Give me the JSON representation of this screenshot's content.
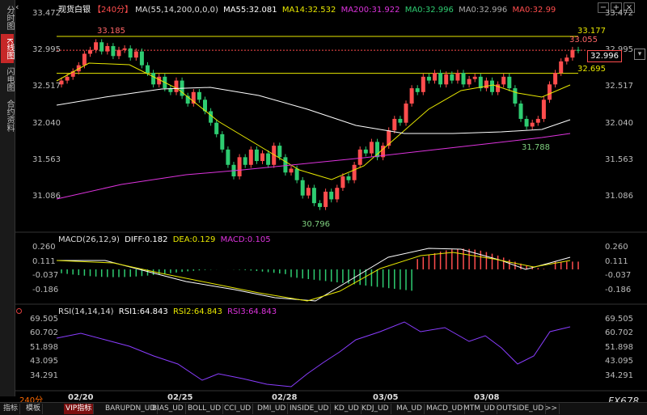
{
  "sidebar": {
    "tabs": [
      {
        "label": "分时图",
        "active": false
      },
      {
        "label": "K线图",
        "active": true
      },
      {
        "label": "闪电图",
        "active": false
      },
      {
        "label": "合约资料",
        "active": false
      }
    ]
  },
  "header": {
    "symbol": "现货白银",
    "period": "【240分】",
    "ma_params": "MA(55,14,200,0,0,0)",
    "ma55": "MA55:32.081",
    "ma14": "MA14:32.532",
    "ma200": "MA200:31.922",
    "ma_a": "MA0:32.996",
    "ma_b": "MA0:32.996",
    "ma_c": "MA0:32.99"
  },
  "price_axis": {
    "ticks": [
      "33.472",
      "32.995",
      "32.517",
      "32.040",
      "31.563",
      "31.086"
    ]
  },
  "annotations": {
    "high": "33.185",
    "low": "30.796",
    "local_low": "31.788",
    "line_upper": "33.177",
    "last_high": "33.055",
    "line_lower": "32.695",
    "current": "32.996"
  },
  "macd": {
    "title": "MACD(26,12,9)",
    "diff": "DIFF:0.182",
    "dea": "DEA:0.129",
    "macd": "MACD:0.105",
    "ticks": [
      "0.260",
      "0.111",
      "-0.037",
      "-0.186"
    ]
  },
  "rsi": {
    "title": "RSI(14,14,14)",
    "rsi1": "RSI1:64.843",
    "rsi2": "RSI2:64.843",
    "rsi3": "RSI3:64.843",
    "ticks": [
      "69.505",
      "60.702",
      "51.898",
      "43.095",
      "34.291"
    ]
  },
  "x_axis": {
    "period_label": "240分",
    "dates": [
      "02/20",
      "02/25",
      "02/28",
      "03/05",
      "03/08"
    ]
  },
  "bottom_tabs": [
    "指标",
    "模板",
    "VIP指标",
    "BARUPDN_UD",
    "BIAS_UD",
    "BOLL_UD",
    "CCI_UD",
    "DMI_UD",
    "INSIDE_UD",
    "KD_UD",
    "KDJ_UD",
    "MA_UD",
    "MACD_UD",
    "MTM_UD",
    "OUTSIDE_UD",
    ">>"
  ],
  "brand": "FX678",
  "colors": {
    "up": "#ff4d4d",
    "down": "#2ecc71",
    "ma55": "#ffffff",
    "ma14": "#e8e800",
    "ma200": "#dd33dd"
  }
}
